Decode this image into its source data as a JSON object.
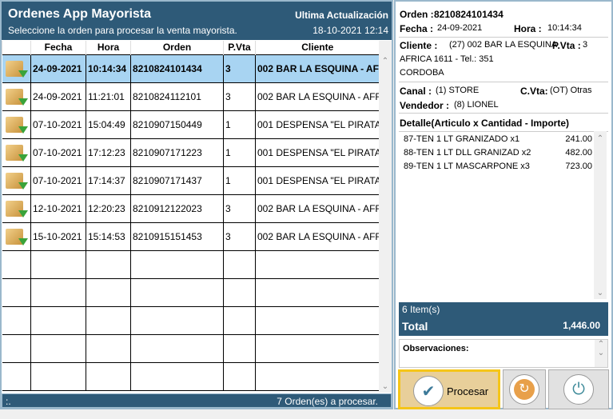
{
  "header": {
    "title": "Ordenes App Mayorista",
    "subtitle": "Seleccione la orden para procesar la venta mayorista.",
    "update_label": "Ultima Actualización",
    "update_value": "18-10-2021 12:14"
  },
  "table": {
    "columns": [
      "",
      "Fecha",
      "Hora",
      "Orden",
      "P.Vta",
      "Cliente"
    ],
    "rows": [
      {
        "fecha": "24-09-2021",
        "hora": "10:14:34",
        "orden": "8210824101434",
        "pvta": "3",
        "cliente": "002 BAR LA ESQUINA - AFR"
      },
      {
        "fecha": "24-09-2021",
        "hora": "11:21:01",
        "orden": "8210824112101",
        "pvta": "3",
        "cliente": "002 BAR LA ESQUINA - AFR"
      },
      {
        "fecha": "07-10-2021",
        "hora": "15:04:49",
        "orden": "8210907150449",
        "pvta": "1",
        "cliente": "001 DESPENSA \"EL PIRATA"
      },
      {
        "fecha": "07-10-2021",
        "hora": "17:12:23",
        "orden": "8210907171223",
        "pvta": "1",
        "cliente": "001 DESPENSA \"EL PIRATA"
      },
      {
        "fecha": "07-10-2021",
        "hora": "17:14:37",
        "orden": "8210907171437",
        "pvta": "1",
        "cliente": "001 DESPENSA \"EL PIRATA"
      },
      {
        "fecha": "12-10-2021",
        "hora": "12:20:23",
        "orden": "8210912122023",
        "pvta": "3",
        "cliente": "002 BAR LA ESQUINA - AFR"
      },
      {
        "fecha": "15-10-2021",
        "hora": "15:14:53",
        "orden": "8210915151453",
        "pvta": "3",
        "cliente": "002 BAR LA ESQUINA - AFR"
      }
    ],
    "selected_index": 0
  },
  "status": {
    "left": ":.",
    "right": "7 Orden(es) a procesar."
  },
  "detail": {
    "orden_label": "Orden :",
    "orden": "8210824101434",
    "fecha_label": "Fecha :",
    "fecha": "24-09-2021",
    "hora_label": "Hora :",
    "hora": "10:14:34",
    "cliente_label": "Cliente :",
    "cliente": "(27) 002 BAR LA ESQUINA",
    "pvta_label": "P.Vta :",
    "pvta": "3",
    "direccion": "AFRICA 1611 - Tel.: 351",
    "ciudad": "CORDOBA",
    "canal_label": "Canal :",
    "canal": "(1) STORE",
    "cvta_label": "C.Vta:",
    "cvta": "(OT) Otras",
    "vendedor_label": "Vendedor :",
    "vendedor": "(8) LIONEL",
    "detalle_title": "Detalle(Articulo x Cantidad - Importe)",
    "items": [
      {
        "desc": "87-TEN 1 LT GRANIZADO x1",
        "importe": "241.00"
      },
      {
        "desc": "88-TEN 1 LT DLL GRANIZAD x2",
        "importe": "482.00"
      },
      {
        "desc": "89-TEN 1 LT MASCARPONE x3",
        "importe": "723.00"
      }
    ],
    "item_count": "6 Item(s)",
    "total_label": "Total",
    "total": "1,446.00",
    "observaciones_label": "Observaciones:"
  },
  "buttons": {
    "procesar": "Procesar"
  },
  "colors": {
    "header": "#2e5a78",
    "selected_row": "#a8d4f2",
    "focus": "#f5c518"
  }
}
